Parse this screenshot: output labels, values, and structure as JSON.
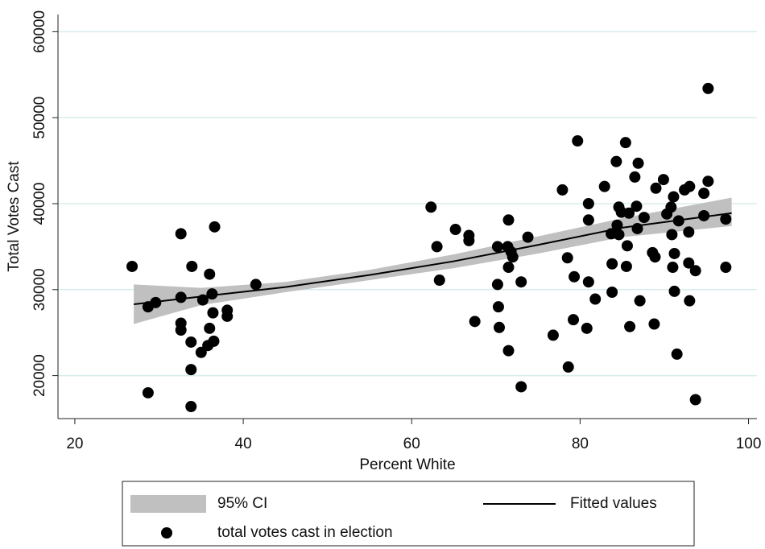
{
  "chart_data": {
    "type": "scatter",
    "x_label": "Percent White",
    "y_label": "Total Votes Cast",
    "xlim": [
      18,
      101
    ],
    "ylim": [
      15000,
      62000
    ],
    "xticks": [
      20,
      40,
      60,
      80,
      100
    ],
    "yticks": [
      20000,
      30000,
      40000,
      50000,
      60000
    ],
    "grid": true,
    "grid_color": "#d8ecec",
    "legend_position": "bottom",
    "series": [
      {
        "name": "95% CI",
        "kind": "band",
        "color": "#c0c0c0",
        "x": [
          27,
          35,
          45,
          55,
          65,
          75,
          85,
          98
        ],
        "lower": [
          26000,
          28200,
          29700,
          31100,
          32500,
          34200,
          36100,
          37400
        ],
        "upper": [
          30600,
          30200,
          30900,
          32300,
          34100,
          36200,
          38300,
          40700
        ]
      },
      {
        "name": "Fitted values",
        "kind": "line",
        "color": "#000000",
        "x": [
          27,
          35,
          45,
          55,
          65,
          75,
          85,
          98
        ],
        "values": [
          28300,
          29200,
          30300,
          31700,
          33300,
          35200,
          37200,
          38900
        ]
      },
      {
        "name": "total votes cast in election",
        "kind": "points",
        "color": "#000000",
        "x": [
          26.8,
          28.7,
          28.7,
          29.6,
          32.6,
          32.6,
          32.6,
          32.6,
          33.8,
          33.8,
          33.9,
          33.8,
          35.0,
          35.2,
          35.8,
          36.0,
          36.0,
          36.3,
          36.5,
          36.4,
          36.6,
          38.1,
          38.1,
          41.5,
          62.3,
          63.0,
          63.3,
          65.2,
          66.8,
          66.8,
          67.5,
          73.8,
          70.2,
          70.2,
          70.3,
          70.4,
          71.5,
          71.4,
          71.8,
          72.0,
          71.5,
          71.5,
          73.0,
          73.0,
          76.8,
          77.9,
          78.5,
          78.6,
          79.2,
          79.3,
          79.7,
          80.8,
          81.0,
          81.0,
          81.0,
          81.8,
          82.9,
          83.7,
          83.8,
          83.8,
          84.3,
          84.6,
          84.4,
          84.6,
          84.9,
          85.4,
          85.5,
          85.6,
          85.8,
          85.9,
          86.5,
          86.7,
          86.8,
          86.9,
          87.1,
          87.6,
          88.6,
          88.9,
          88.8,
          89.0,
          89.9,
          90.3,
          90.8,
          91.1,
          90.9,
          91.2,
          91.0,
          91.2,
          91.7,
          91.5,
          92.4,
          92.9,
          93.0,
          93.0,
          92.9,
          93.7,
          93.7,
          94.7,
          94.7,
          95.2,
          95.2,
          97.3,
          97.3
        ],
        "values": [
          32700,
          18000,
          28000,
          28500,
          36500,
          29100,
          26100,
          25300,
          23900,
          20700,
          32700,
          16400,
          22700,
          28800,
          23500,
          25500,
          31800,
          29500,
          24000,
          27300,
          37300,
          27600,
          26900,
          30600,
          39600,
          35000,
          31100,
          37000,
          36300,
          35700,
          26300,
          36100,
          35000,
          30600,
          28000,
          25600,
          38100,
          35000,
          34400,
          33800,
          32600,
          22900,
          18700,
          30900,
          24700,
          41600,
          33700,
          21000,
          26500,
          31500,
          47300,
          25500,
          40000,
          38100,
          30900,
          28900,
          42000,
          36500,
          33000,
          29700,
          44900,
          39600,
          37500,
          36400,
          39000,
          47100,
          32700,
          35100,
          38900,
          25700,
          43100,
          39700,
          37100,
          44700,
          28700,
          38400,
          34300,
          33800,
          26000,
          41800,
          42800,
          38800,
          39600,
          40800,
          36400,
          34200,
          32600,
          29800,
          38000,
          22500,
          41600,
          36700,
          42000,
          28700,
          33100,
          32200,
          17200,
          38600,
          41200,
          42600,
          53400,
          38200,
          32600
        ]
      }
    ]
  }
}
